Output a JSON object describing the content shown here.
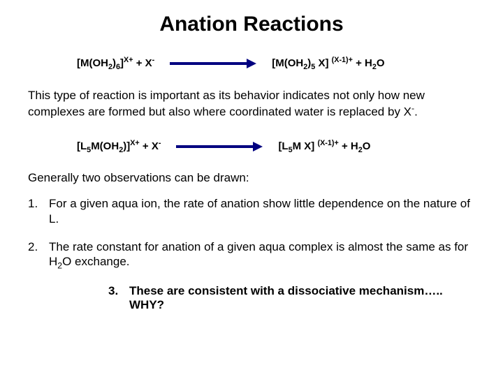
{
  "title": "Anation Reactions",
  "eq1": {
    "left_html": "[M(OH<span class='sub'>2</span>)<span class='sub'>6</span>]<span class='super'>X+</span> + X<span class='super'>-</span>",
    "right_html": "[M(OH<span class='sub'>2</span>)<span class='sub'>5</span> X] <span class='super'>(X-1)+</span> + H<span class='sub'>2</span>O"
  },
  "para1_html": "This type of reaction is important as its behavior indicates not only how new complexes are formed but also where coordinated water is replaced by X<span class='super'>-</span>.",
  "eq2": {
    "left_html": "[L<span class='sub'>5</span>M(OH<span class='sub'>2</span>)]<span class='super'>X+</span> + X<span class='super'>-</span>",
    "right_html": "[L<span class='sub'>5</span>M X] <span class='super'>(X-1)+</span> + H<span class='sub'>2</span>O"
  },
  "general": "Generally two observations can be drawn:",
  "item1": "For a given aqua ion, the rate of anation show little dependence on the nature of L.",
  "item2_html": "The rate constant for anation of a given aqua complex is almost the same as for H<span class='sub'>2</span>O exchange.",
  "item3": "These are consistent with a dissociative mechanism….. WHY?",
  "arrow_color": "#000080"
}
